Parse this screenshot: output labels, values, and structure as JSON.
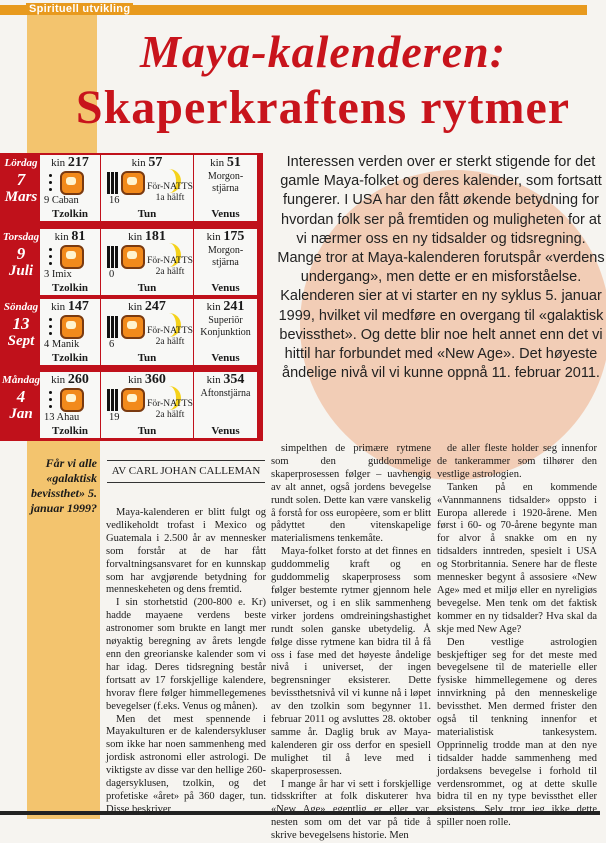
{
  "header": {
    "section": "Spirituell utvikling",
    "title_line1": "Maya-kalenderen:",
    "title_line2": "Skaperkraftens rytmer"
  },
  "colors": {
    "accent_red": "#c0111b",
    "orange": "#e89a1e",
    "band": "#f3c46e",
    "circle": "#f2cdb6"
  },
  "intro": "Interessen verden over er sterkt stigende for det gamle Maya-folket og deres kalender, som fortsatt fungerer. I USA har den fått økende betydning for hvordan folk ser på fremtiden og muligheten for at vi nærmer oss en ny tidsalder og tidsregning. Mange tror at Maya-kalenderen forutspår «verdens undergang», men dette er en misforståelse. Kalenderen sier at vi starter en ny syklus 5. januar 1999, hvilket vil medføre en overgang til «galaktisk bevissthet». Og dette blir noe helt annet enn det vi hittil har forbundet med «New Age». Det høyeste åndelige nivå vil vi kunne oppnå 11. februar 2011.",
  "calendar": {
    "labels": {
      "kin": "kin",
      "tzolkin": "Tzolkin",
      "tun": "Tun",
      "venus": "Venus"
    },
    "rows": [
      {
        "weekday": "Lördag",
        "day": "7",
        "month": "Mars",
        "tzolkin_kin": "217",
        "tzolkin_sign": "9  Caban",
        "tun_kin": "57",
        "tun_num": "16",
        "moon": "För-NATTS",
        "moon_half": "1a hälft",
        "venus_kin": "51",
        "venus_text": "Morgon-stjärna"
      },
      {
        "weekday": "Torsdag",
        "day": "9",
        "month": "Juli",
        "tzolkin_kin": "81",
        "tzolkin_sign": "3  Imix",
        "tun_kin": "181",
        "tun_num": "0",
        "moon": "För-NATTS",
        "moon_half": "2a hälft",
        "venus_kin": "175",
        "venus_text": "Morgon-stjärna"
      },
      {
        "weekday": "Söndag",
        "day": "13",
        "month": "Sept",
        "tzolkin_kin": "147",
        "tzolkin_sign": "4  Manik",
        "tun_kin": "247",
        "tun_num": "6",
        "moon": "För-NATTS",
        "moon_half": "2a hälft",
        "venus_kin": "241",
        "venus_text": "Superiör Konjunktion"
      },
      {
        "weekday": "Måndag",
        "day": "4",
        "month": "Jan",
        "tzolkin_kin": "260",
        "tzolkin_sign": "13 Ahau",
        "tun_kin": "360",
        "tun_num": "19",
        "moon": "För-NATTS",
        "moon_half": "2a hälft",
        "venus_kin": "354",
        "venus_text": "Aftonstjärna"
      }
    ]
  },
  "pull_quote": "Får vi alle «galaktisk bevissthet» 5. januar 1999?",
  "byline": "AV CARL JOHAN CALLEMAN",
  "columns": [
    [
      "Maya-kalenderen er blitt fulgt og vedlikeholdt trofast i Mexico og Guatemala i 2.500 år av mennesker som forstår at de har fått forvaltningsansvaret for en kunnskap som har avgjørende betydning for menneskeheten og dens fremtid.",
      "I sin storhetstid (200-800 e. Kr) hadde mayaene verdens beste astronomer som brukte en langt mer nøyaktig beregning av årets lengde enn den greorianske kalender som vi har idag. Deres tidsregning består fortsatt av 17 forskjellige kalendere, hvorav flere følger himmellegemenes bevegelser (f.eks. Venus og månen).",
      "Men det mest spennende i Mayakulturen er de kalendersykluser som ikke har noen sammenheng med jordisk astronomi eller astrologi. De viktigste av disse var den hellige 260-dagersyklusen, tzolkin, og det profetiske «året» på 360 dager, tun. Disse beskriver"
    ],
    [
      "simpelthen de primære rytmene som den guddommelige skaperprosessen følger – uavhengig av alt annet, også jordens bevegelse rundt solen. Dette kan være vanskelig å forstå for oss europèere, som er blitt pådyttet den vitenskapelige materialismens tenkemåte.",
      "Maya-folket forsto at det finnes en guddommelig kraft og en guddommelig skaperprosess som følger bestemte rytmer gjennom hele universet, og i en slik sammenheng virker jordens omdreiningshastighet rundt solen ganske ubetydelig. Å følge disse rytmene kan bidra til å få oss i fase med det høyeste åndelige nivå i universet, der ingen begrensninger eksisterer. Dette bevissthetsnivå vil vi kunne nå i løpet av den tzolkin som begynner 11. februar 2011 og avsluttes 28. oktober samme år. Daglig bruk av Maya-kalenderen gir oss derfor en spesiell mulighet til å leve med i skaperprosessen.",
      "I mange år har vi sett i forskjellige tidsskrifter at folk diskuterer hva «New Age» egentlig er eller var, nesten som om det var på tide å skrive bevegelsens historie. Men"
    ],
    [
      "de aller fleste holder seg innenfor de tankerammer som tilhører den vestlige astrologien.",
      "Tanken på en kommende «Vannmannens tidsalder» oppsto i Europa allerede i 1920-årene. Men først i 60- og 70-årene begynte man for alvor å snakke om en ny tidsalders inntreden, spesielt i USA og Storbritannia. Senere har de fleste mennesker begynt å assosiere «New Age» med et miljø eller en nyreligiøs bevegelse. Men tenk om det faktisk kommer en ny tidsalder? Hva skal da skje med New Age?",
      "Den vestlige astrologien beskjeftiger seg for det meste med bevegelsene til de materielle eller fysiske himmellegemene og deres innvirkning på den menneskelige bevissthet. Men dermed frister den også til tenkning innenfor et materialistisk tankesystem. Opprinnelig trodde man at den nye tidsalder hadde sammenheng med jordaksens bevegelse i forhold til verdensrommet, og at dette skulle bidra til en ny type bevissthet eller eksistens. Selv tror jeg ikke dette spiller noen rolle."
    ]
  ]
}
